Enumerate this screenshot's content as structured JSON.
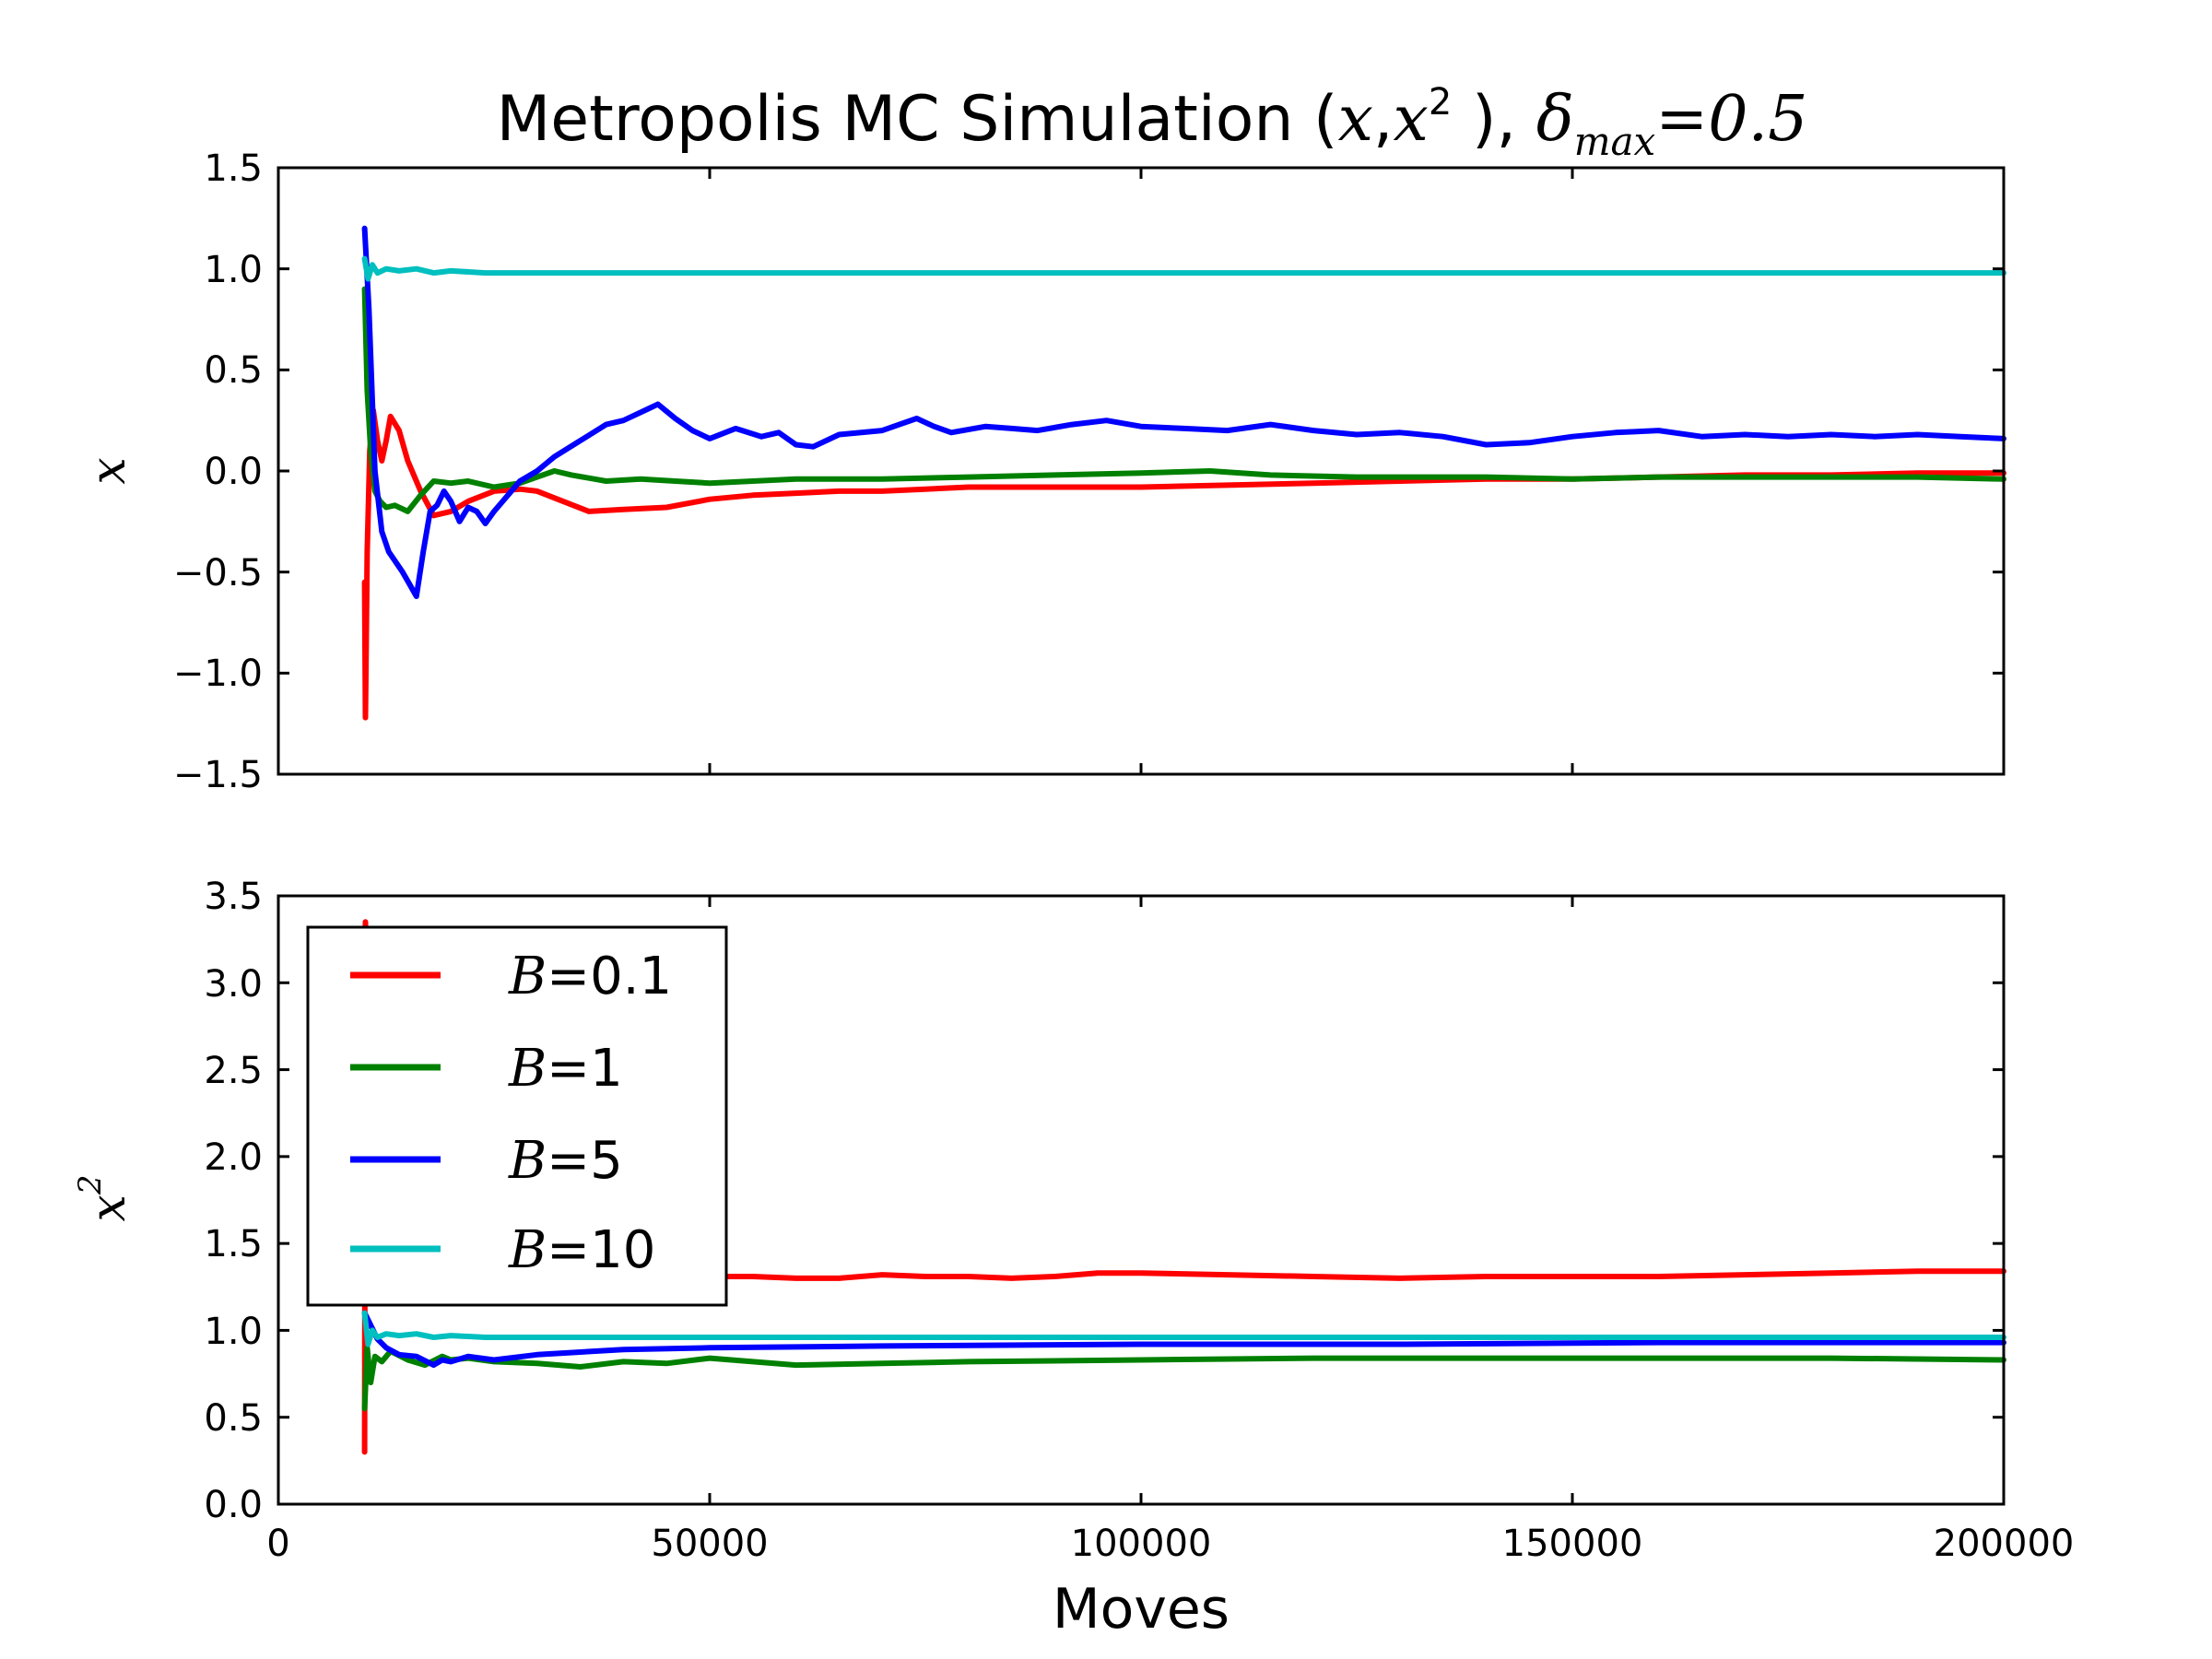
{
  "chart_data": [
    {
      "type": "line",
      "title_parts": [
        "Metropolis MC Simulation (",
        "x",
        ",",
        "x",
        "2",
        " ), ",
        "δ",
        "max",
        "=0.5"
      ],
      "ylabel": "x",
      "xlim": [
        0,
        200000
      ],
      "ylim": [
        -1.5,
        1.5
      ],
      "yticks": [
        1.5,
        1.0,
        0.5,
        0.0,
        -0.5,
        -1.0,
        -1.5
      ],
      "ytick_labels": [
        "1.5",
        "1.0",
        "0.5",
        "0.0",
        "−0.5",
        "−1.0",
        "−1.5"
      ],
      "xticks": [
        0,
        50000,
        100000,
        150000,
        200000
      ],
      "series": [
        {
          "name": "B=0.1",
          "color": "#ff0000",
          "x": [
            10000,
            10100,
            10300,
            10600,
            11000,
            11500,
            12000,
            12500,
            13000,
            14000,
            15000,
            16500,
            18000,
            20000,
            22000,
            25000,
            28000,
            30000,
            33000,
            36000,
            40000,
            45000,
            50000,
            55000,
            60000,
            65000,
            70000,
            75000,
            80000,
            85000,
            90000,
            100000,
            110000,
            120000,
            130000,
            140000,
            150000,
            160000,
            170000,
            180000,
            190000,
            200000
          ],
          "y": [
            -0.55,
            -1.22,
            -0.4,
            0.1,
            0.3,
            0.15,
            0.05,
            0.15,
            0.27,
            0.2,
            0.05,
            -0.1,
            -0.22,
            -0.2,
            -0.15,
            -0.1,
            -0.09,
            -0.1,
            -0.15,
            -0.2,
            -0.19,
            -0.18,
            -0.14,
            -0.12,
            -0.11,
            -0.1,
            -0.1,
            -0.09,
            -0.08,
            -0.08,
            -0.08,
            -0.08,
            -0.07,
            -0.06,
            -0.05,
            -0.04,
            -0.04,
            -0.03,
            -0.02,
            -0.02,
            -0.01,
            -0.01
          ]
        },
        {
          "name": "B=1",
          "color": "#008000",
          "x": [
            10000,
            10300,
            10700,
            11200,
            11800,
            12500,
            13500,
            15000,
            16500,
            18000,
            20000,
            22000,
            25000,
            28000,
            30000,
            32000,
            34000,
            38000,
            42000,
            46000,
            50000,
            55000,
            60000,
            70000,
            80000,
            90000,
            100000,
            108000,
            115000,
            125000,
            140000,
            150000,
            160000,
            170000,
            180000,
            190000,
            200000
          ],
          "y": [
            0.9,
            0.4,
            0.1,
            -0.1,
            -0.15,
            -0.18,
            -0.17,
            -0.2,
            -0.12,
            -0.05,
            -0.06,
            -0.05,
            -0.08,
            -0.06,
            -0.03,
            0.0,
            -0.02,
            -0.05,
            -0.04,
            -0.05,
            -0.06,
            -0.05,
            -0.04,
            -0.04,
            -0.03,
            -0.02,
            -0.01,
            0.0,
            -0.02,
            -0.03,
            -0.03,
            -0.04,
            -0.03,
            -0.03,
            -0.03,
            -0.03,
            -0.04
          ]
        },
        {
          "name": "B=5",
          "color": "#0000ff",
          "x": [
            10000,
            10500,
            11200,
            12000,
            12800,
            13600,
            14400,
            15200,
            16000,
            16800,
            17600,
            18400,
            19200,
            20000,
            21000,
            22000,
            23000,
            24000,
            25000,
            26000,
            28000,
            30000,
            32000,
            35000,
            38000,
            40000,
            43000,
            44000,
            46000,
            48000,
            50000,
            53000,
            56000,
            58000,
            60000,
            62000,
            65000,
            70000,
            74000,
            76000,
            78000,
            82000,
            85000,
            88000,
            92000,
            96000,
            100000,
            105000,
            110000,
            115000,
            120000,
            125000,
            130000,
            135000,
            140000,
            145000,
            150000,
            155000,
            160000,
            165000,
            170000,
            175000,
            180000,
            185000,
            190000,
            195000,
            200000
          ],
          "y": [
            1.2,
            0.8,
            0.0,
            -0.3,
            -0.4,
            -0.45,
            -0.5,
            -0.56,
            -0.62,
            -0.4,
            -0.2,
            -0.17,
            -0.1,
            -0.15,
            -0.25,
            -0.18,
            -0.2,
            -0.26,
            -0.2,
            -0.15,
            -0.05,
            0.0,
            0.07,
            0.15,
            0.23,
            0.25,
            0.31,
            0.33,
            0.26,
            0.2,
            0.16,
            0.21,
            0.17,
            0.19,
            0.13,
            0.12,
            0.18,
            0.2,
            0.26,
            0.22,
            0.19,
            0.22,
            0.21,
            0.2,
            0.23,
            0.25,
            0.22,
            0.21,
            0.2,
            0.23,
            0.2,
            0.18,
            0.19,
            0.17,
            0.13,
            0.14,
            0.17,
            0.19,
            0.2,
            0.17,
            0.18,
            0.17,
            0.18,
            0.17,
            0.18,
            0.17,
            0.16
          ]
        },
        {
          "name": "B=10",
          "color": "#00bfbf",
          "x": [
            10000,
            10400,
            10900,
            11500,
            12500,
            14000,
            16000,
            18000,
            20000,
            24000,
            30000,
            40000,
            60000,
            80000,
            100000,
            120000,
            140000,
            160000,
            180000,
            200000
          ],
          "y": [
            1.05,
            0.95,
            1.02,
            0.98,
            1.0,
            0.99,
            1.0,
            0.98,
            0.99,
            0.98,
            0.98,
            0.98,
            0.98,
            0.98,
            0.98,
            0.98,
            0.98,
            0.98,
            0.98,
            0.98
          ]
        }
      ]
    },
    {
      "type": "line",
      "ylabel": "x",
      "ylabel_sup": "2",
      "xlabel": "Moves",
      "xlim": [
        0,
        200000
      ],
      "ylim": [
        0.0,
        3.5
      ],
      "yticks": [
        3.5,
        3.0,
        2.5,
        2.0,
        1.5,
        1.0,
        0.5,
        0.0
      ],
      "ytick_labels": [
        "3.5",
        "3.0",
        "2.5",
        "2.0",
        "1.5",
        "1.0",
        "0.5",
        "0.0"
      ],
      "xticks": [
        0,
        50000,
        100000,
        150000,
        200000
      ],
      "xtick_labels": [
        "0",
        "50000",
        "100000",
        "150000",
        "200000"
      ],
      "legend": {
        "location": "upper-left",
        "entries": [
          {
            "var": "B",
            "value": "=0.1"
          },
          {
            "var": "B",
            "value": "=1"
          },
          {
            "var": "B",
            "value": "=5"
          },
          {
            "var": "B",
            "value": "=10"
          }
        ]
      },
      "series": [
        {
          "name": "B=0.1",
          "color": "#ff0000",
          "x": [
            10000,
            10100,
            10300,
            10600,
            11000,
            11500,
            12000,
            13000,
            15000,
            18000,
            20000,
            30000,
            40000,
            50000,
            55000,
            60000,
            65000,
            70000,
            75000,
            80000,
            85000,
            90000,
            95000,
            100000,
            110000,
            120000,
            130000,
            140000,
            150000,
            160000,
            170000,
            180000,
            190000,
            200000
          ],
          "y": [
            0.3,
            3.35,
            2.2,
            1.6,
            1.45,
            1.4,
            1.35,
            1.35,
            1.34,
            1.33,
            1.33,
            1.32,
            1.32,
            1.31,
            1.31,
            1.3,
            1.3,
            1.32,
            1.31,
            1.31,
            1.3,
            1.31,
            1.33,
            1.33,
            1.32,
            1.31,
            1.3,
            1.31,
            1.31,
            1.31,
            1.32,
            1.33,
            1.34,
            1.34
          ]
        },
        {
          "name": "B=1",
          "color": "#008000",
          "x": [
            10000,
            10300,
            10700,
            11200,
            12000,
            13000,
            15000,
            17000,
            19000,
            20000,
            22000,
            25000,
            30000,
            35000,
            40000,
            45000,
            50000,
            60000,
            70000,
            80000,
            100000,
            120000,
            140000,
            160000,
            180000,
            200000
          ],
          "y": [
            0.55,
            0.9,
            0.7,
            0.85,
            0.82,
            0.88,
            0.83,
            0.8,
            0.85,
            0.83,
            0.84,
            0.82,
            0.81,
            0.79,
            0.82,
            0.81,
            0.84,
            0.8,
            0.81,
            0.82,
            0.83,
            0.84,
            0.84,
            0.84,
            0.84,
            0.83
          ]
        },
        {
          "name": "B=5",
          "color": "#0000ff",
          "x": [
            10000,
            10500,
            11500,
            12500,
            14000,
            16000,
            18000,
            19000,
            20000,
            22000,
            25000,
            30000,
            40000,
            50000,
            70000,
            100000,
            130000,
            160000,
            200000
          ],
          "y": [
            1.1,
            1.05,
            0.95,
            0.9,
            0.86,
            0.85,
            0.8,
            0.83,
            0.82,
            0.85,
            0.83,
            0.86,
            0.89,
            0.9,
            0.91,
            0.92,
            0.92,
            0.93,
            0.93
          ]
        },
        {
          "name": "B=10",
          "color": "#00bfbf",
          "x": [
            10000,
            10400,
            10900,
            11500,
            12500,
            14000,
            16000,
            18000,
            20000,
            24000,
            30000,
            40000,
            60000,
            80000,
            100000,
            120000,
            140000,
            160000,
            180000,
            200000
          ],
          "y": [
            1.1,
            0.92,
            1.0,
            0.96,
            0.98,
            0.97,
            0.98,
            0.96,
            0.97,
            0.96,
            0.96,
            0.96,
            0.96,
            0.96,
            0.96,
            0.96,
            0.96,
            0.96,
            0.96,
            0.96
          ]
        }
      ]
    }
  ]
}
